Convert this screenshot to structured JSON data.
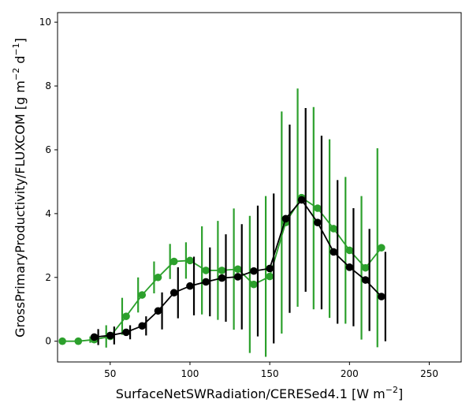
{
  "chart_data": {
    "type": "line",
    "xlabel": "SurfaceNetSWRadiation/CERESed4.1 [W m",
    "xlabel_sup": "−2",
    "xlabel_end": "]",
    "ylabel": "GrossPrimaryProductivity/FLUXCOM [g m",
    "ylabel_sup1": "−2",
    "ylabel_mid": " d",
    "ylabel_sup2": "−1",
    "ylabel_end": "]",
    "xlim": [
      17,
      270
    ],
    "ylim": [
      -0.65,
      10.3
    ],
    "xticks": [
      50,
      100,
      150,
      200,
      250
    ],
    "yticks": [
      0,
      2,
      4,
      6,
      8,
      10
    ],
    "grid": false,
    "series": [
      {
        "color": "#2ca02c",
        "x": [
          20,
          30,
          40,
          50,
          60,
          70,
          80,
          90,
          100,
          110,
          120,
          130,
          140,
          150,
          160,
          170,
          180,
          190,
          200,
          210,
          220
        ],
        "y": [
          0.0,
          0.0,
          0.05,
          0.15,
          0.78,
          1.45,
          2.0,
          2.5,
          2.53,
          2.22,
          2.22,
          2.26,
          1.78,
          2.03,
          3.72,
          4.5,
          4.17,
          3.53,
          2.85,
          2.3,
          2.93
        ],
        "err": [
          0.0,
          0.0,
          0.1,
          0.35,
          0.58,
          0.55,
          0.5,
          0.55,
          0.57,
          1.38,
          1.55,
          1.9,
          2.15,
          2.52,
          3.48,
          3.42,
          3.17,
          2.8,
          2.3,
          2.25,
          3.12
        ]
      },
      {
        "color": "#000000",
        "x": [
          40,
          50,
          60,
          70,
          80,
          90,
          100,
          110,
          120,
          130,
          140,
          150,
          160,
          170,
          180,
          190,
          200,
          210,
          220
        ],
        "y": [
          0.13,
          0.18,
          0.28,
          0.48,
          0.95,
          1.52,
          1.73,
          1.86,
          1.98,
          2.02,
          2.2,
          2.28,
          3.84,
          4.43,
          3.72,
          2.8,
          2.32,
          1.92,
          1.4
        ],
        "err": [
          0.25,
          0.28,
          0.22,
          0.3,
          0.58,
          0.8,
          0.92,
          1.08,
          1.37,
          1.65,
          2.05,
          2.35,
          2.95,
          2.88,
          2.72,
          2.25,
          1.85,
          1.6,
          1.4
        ]
      }
    ]
  }
}
